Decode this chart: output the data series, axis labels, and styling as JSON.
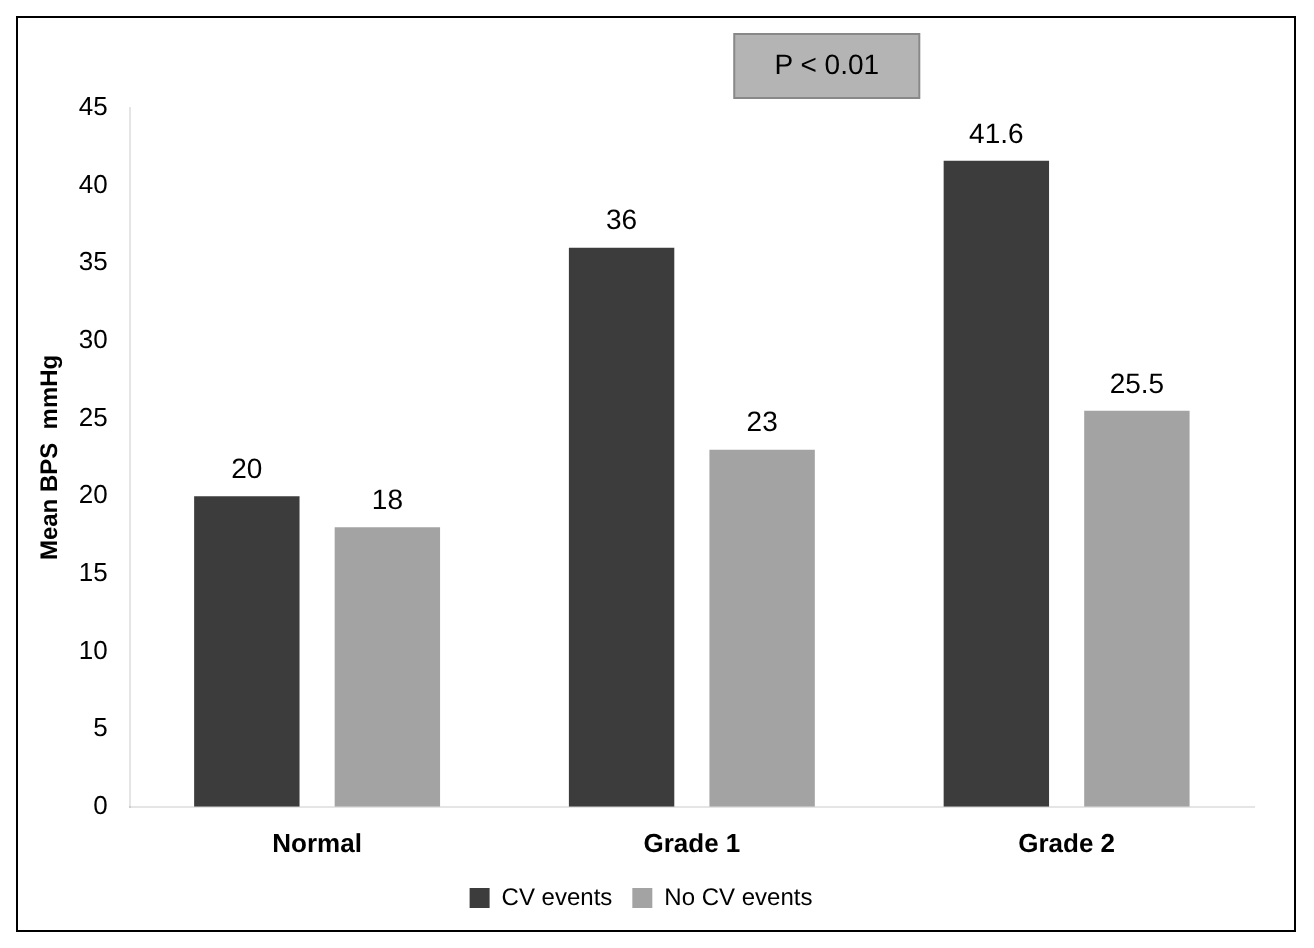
{
  "chart_data": {
    "type": "bar",
    "categories": [
      "Normal",
      "Grade 1",
      "Grade 2"
    ],
    "series": [
      {
        "name": "CV events",
        "color": "#3c3c3c",
        "values": [
          20,
          36,
          41.6
        ]
      },
      {
        "name": "No CV events",
        "color": "#a3a3a3",
        "values": [
          18,
          23,
          25.5
        ]
      }
    ],
    "ylabel": "Mean BPS  mmHg",
    "ylim": [
      0,
      45
    ],
    "yticks": [
      0,
      5,
      10,
      15,
      20,
      25,
      30,
      35,
      40,
      45
    ],
    "annotations": [
      "P < 0.01"
    ],
    "data_labels": true,
    "grid": false,
    "legend": "bottom"
  }
}
